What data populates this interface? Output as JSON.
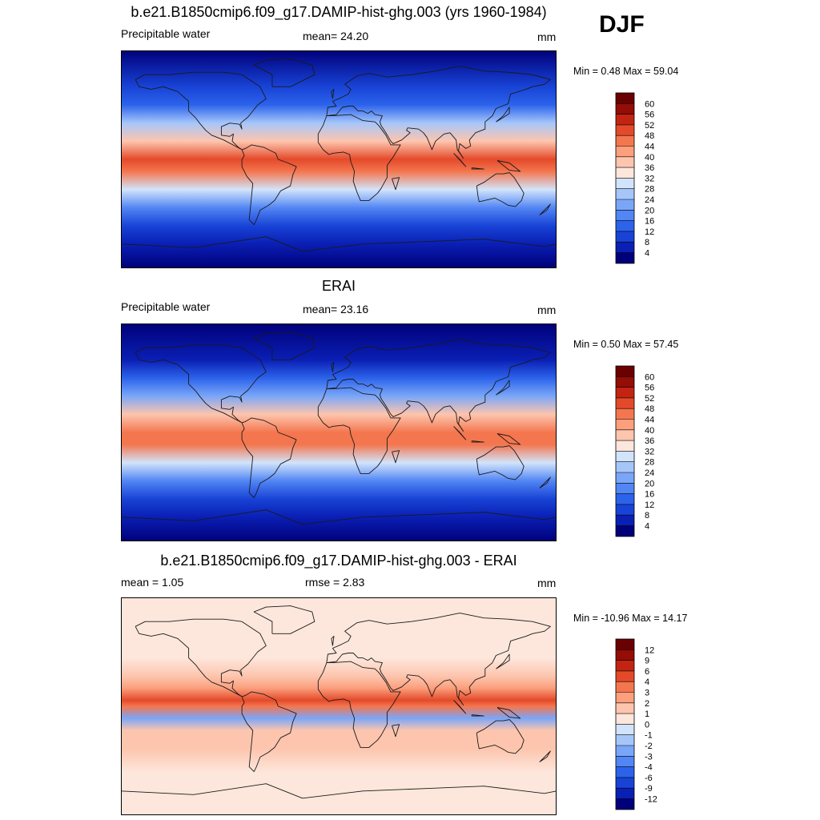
{
  "figure": {
    "season": "DJF",
    "panel_top": {
      "title": "b.e21.B1850cmip6.f09_g17.DAMIP-hist-ghg.003 (yrs 1960-1984)",
      "left": "Precipitable water",
      "center": "mean=  24.20",
      "right": "mm",
      "minmax": "Min =   0.48 Max =  59.04"
    },
    "panel_mid": {
      "title": "ERAI",
      "left": "Precipitable water",
      "center": "mean=  23.16",
      "right": "mm",
      "minmax": "Min =   0.50 Max =  57.45"
    },
    "panel_bot": {
      "title": "b.e21.B1850cmip6.f09_g17.DAMIP-hist-ghg.003 - ERAI",
      "left": "mean =   1.05",
      "center": "rmse =   2.83",
      "right": "mm",
      "minmax": "Min = -10.96 Max =  14.17"
    }
  },
  "chart_data": [
    {
      "type": "heatmap",
      "title": "b.e21.B1850cmip6.f09_g17.DAMIP-hist-ghg.003 (yrs 1960-1984)",
      "variable": "Precipitable water",
      "units": "mm",
      "mean": 24.2,
      "min": 0.48,
      "max": 59.04,
      "levels": [
        "4",
        "8",
        "12",
        "16",
        "20",
        "24",
        "28",
        "32",
        "36",
        "40",
        "44",
        "48",
        "52",
        "56",
        "60"
      ],
      "colors": [
        "#00007a",
        "#0a1fb4",
        "#1843d6",
        "#2c63eb",
        "#5286f4",
        "#7aa6f8",
        "#a6c6fa",
        "#d2e4fb",
        "#fde7dc",
        "#fdc5ae",
        "#fb9f7d",
        "#f4764f",
        "#e44a2a",
        "#c32412",
        "#940d06",
        "#6b0000"
      ],
      "zones": [
        {
          "lat": 90,
          "value": 2
        },
        {
          "lat": 60,
          "value": 8
        },
        {
          "lat": 45,
          "value": 14
        },
        {
          "lat": 30,
          "value": 24
        },
        {
          "lat": 15,
          "value": 38
        },
        {
          "lat": 0,
          "value": 50
        },
        {
          "lat": -10,
          "value": 46
        },
        {
          "lat": -25,
          "value": 30
        },
        {
          "lat": -40,
          "value": 18
        },
        {
          "lat": -55,
          "value": 10
        },
        {
          "lat": -70,
          "value": 4
        },
        {
          "lat": -90,
          "value": 2
        }
      ]
    },
    {
      "type": "heatmap",
      "title": "ERAI",
      "variable": "Precipitable water",
      "units": "mm",
      "mean": 23.16,
      "min": 0.5,
      "max": 57.45,
      "levels": [
        "4",
        "8",
        "12",
        "16",
        "20",
        "24",
        "28",
        "32",
        "36",
        "40",
        "44",
        "48",
        "52",
        "56",
        "60"
      ],
      "colors": [
        "#00007a",
        "#0a1fb4",
        "#1843d6",
        "#2c63eb",
        "#5286f4",
        "#7aa6f8",
        "#a6c6fa",
        "#d2e4fb",
        "#fde7dc",
        "#fdc5ae",
        "#fb9f7d",
        "#f4764f",
        "#e44a2a",
        "#c32412",
        "#940d06",
        "#6b0000"
      ],
      "zones": [
        {
          "lat": 90,
          "value": 2
        },
        {
          "lat": 60,
          "value": 7
        },
        {
          "lat": 45,
          "value": 13
        },
        {
          "lat": 30,
          "value": 22
        },
        {
          "lat": 15,
          "value": 36
        },
        {
          "lat": 0,
          "value": 47
        },
        {
          "lat": -10,
          "value": 44
        },
        {
          "lat": -25,
          "value": 29
        },
        {
          "lat": -40,
          "value": 17
        },
        {
          "lat": -55,
          "value": 9
        },
        {
          "lat": -70,
          "value": 4
        },
        {
          "lat": -90,
          "value": 2
        }
      ]
    },
    {
      "type": "heatmap",
      "title": "b.e21.B1850cmip6.f09_g17.DAMIP-hist-ghg.003 - ERAI",
      "units": "mm",
      "mean": 1.05,
      "rmse": 2.83,
      "min": -10.96,
      "max": 14.17,
      "levels": [
        "-12",
        "-9",
        "-6",
        "-4",
        "-3",
        "-2",
        "-1",
        "0",
        "1",
        "2",
        "3",
        "4",
        "6",
        "9",
        "12"
      ],
      "colors": [
        "#00007a",
        "#0a1fb4",
        "#1843d6",
        "#2c63eb",
        "#5286f4",
        "#7aa6f8",
        "#a6c6fa",
        "#d2e4fb",
        "#fde7dc",
        "#fdc5ae",
        "#fb9f7d",
        "#f4764f",
        "#e44a2a",
        "#c32412",
        "#940d06",
        "#6b0000"
      ],
      "zones": [
        {
          "lat": 90,
          "value": 0.5
        },
        {
          "lat": 60,
          "value": 0.6
        },
        {
          "lat": 40,
          "value": 0.8
        },
        {
          "lat": 25,
          "value": 1.2
        },
        {
          "lat": 15,
          "value": 2.5
        },
        {
          "lat": 5,
          "value": 4.5
        },
        {
          "lat": 0,
          "value": 3.0
        },
        {
          "lat": -10,
          "value": -2.5
        },
        {
          "lat": -20,
          "value": 1.5
        },
        {
          "lat": -35,
          "value": 1.5
        },
        {
          "lat": -55,
          "value": 0.8
        },
        {
          "lat": -90,
          "value": 0.5
        }
      ]
    }
  ]
}
